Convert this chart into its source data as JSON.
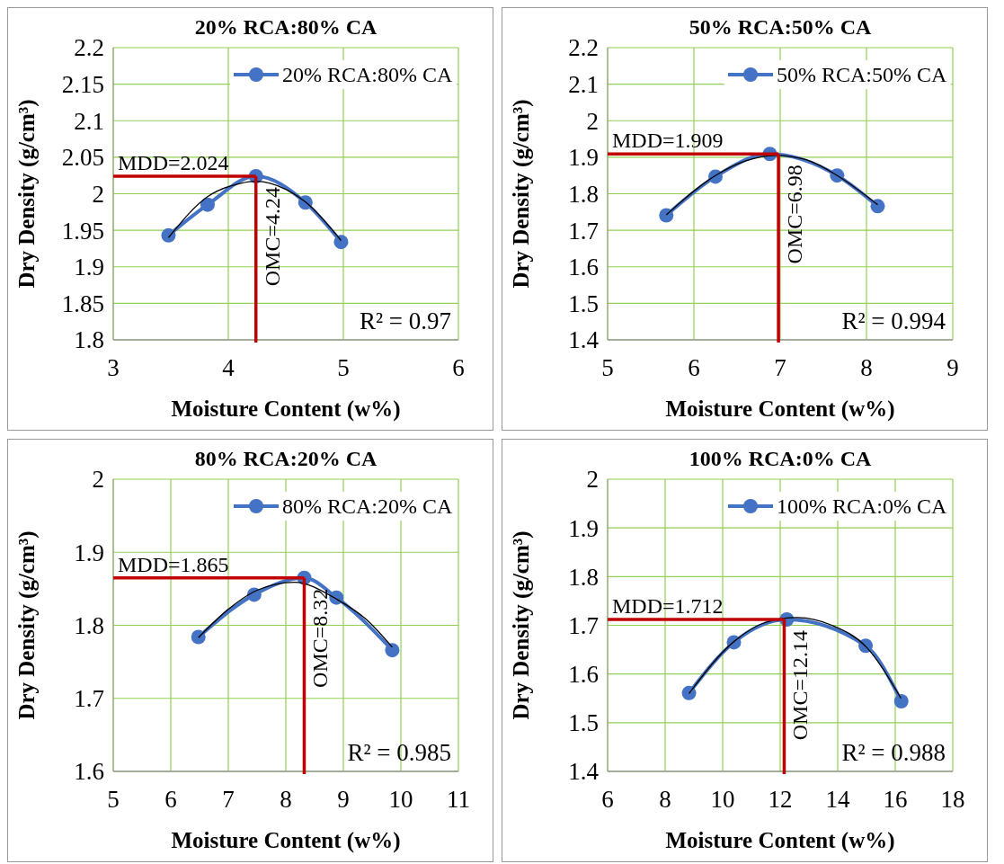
{
  "chart_data": [
    {
      "type": "line",
      "title": "20% RCA:80% CA",
      "xlabel": "Moisture Content (w%)",
      "ylabel": "Dry Density (g/cm³)",
      "xlim": [
        3,
        6
      ],
      "xticks": [
        3,
        4,
        5,
        6
      ],
      "ylim": [
        1.8,
        2.2
      ],
      "yticks": [
        1.8,
        1.85,
        1.9,
        1.95,
        2,
        2.05,
        2.1,
        2.15,
        2.2
      ],
      "grid": true,
      "legend": "top right",
      "series": [
        {
          "name": "20% RCA:80% CA",
          "color": "#4472c4",
          "marker": "circle",
          "x": [
            3.48,
            3.82,
            4.24,
            4.67,
            4.98
          ],
          "values": [
            1.943,
            1.985,
            2.024,
            1.988,
            1.934
          ]
        },
        {
          "type": "line",
          "color": "#000000",
          "marker": "none",
          "x": [
            3.48,
            3.82,
            4.1,
            4.24,
            4.5,
            4.67,
            4.98
          ],
          "values": [
            1.94,
            1.996,
            2.014,
            2.017,
            2.006,
            1.989,
            1.936
          ]
        }
      ],
      "ref_lines": [
        {
          "axis": "y",
          "value": 2.024,
          "label": "MDD=2.024",
          "color": "#c00000"
        },
        {
          "axis": "x",
          "value": 4.24,
          "label": "OMC=4.24",
          "color": "#c00000"
        }
      ],
      "annotations": [
        "R² = 0.97"
      ]
    },
    {
      "type": "line",
      "title": "50% RCA:50% CA",
      "xlabel": "Moisture Content (w%)",
      "ylabel": "Dry Density (g/cm³)",
      "xlim": [
        5,
        9
      ],
      "xticks": [
        5,
        6,
        7,
        8,
        9
      ],
      "ylim": [
        1.4,
        2.2
      ],
      "yticks": [
        1.4,
        1.5,
        1.6,
        1.7,
        1.8,
        1.9,
        2,
        2.1,
        2.2
      ],
      "grid": true,
      "legend": "top right",
      "series": [
        {
          "name": "50% RCA:50% CA",
          "color": "#4472c4",
          "marker": "circle",
          "x": [
            5.68,
            6.25,
            6.88,
            7.66,
            8.13
          ],
          "values": [
            1.741,
            1.847,
            1.909,
            1.85,
            1.766
          ]
        },
        {
          "type": "line",
          "color": "#000000",
          "marker": "none",
          "x": [
            5.68,
            6.25,
            6.6,
            6.95,
            7.3,
            7.66,
            8.13
          ],
          "values": [
            1.742,
            1.85,
            1.89,
            1.905,
            1.893,
            1.85,
            1.77
          ]
        }
      ],
      "ref_lines": [
        {
          "axis": "y",
          "value": 1.909,
          "label": "MDD=1.909",
          "color": "#c00000"
        },
        {
          "axis": "x",
          "value": 6.98,
          "label": "OMC=6.98",
          "color": "#c00000"
        }
      ],
      "annotations": [
        "R² = 0.994"
      ]
    },
    {
      "type": "line",
      "title": "80% RCA:20% CA",
      "xlabel": "Moisture Content (w%)",
      "ylabel": "Dry Density (g/cm³)",
      "xlim": [
        5,
        11
      ],
      "xticks": [
        5,
        6,
        7,
        8,
        9,
        10,
        11
      ],
      "ylim": [
        1.6,
        2
      ],
      "yticks": [
        1.6,
        1.7,
        1.8,
        1.9,
        2
      ],
      "grid": true,
      "legend": "top right",
      "series": [
        {
          "name": "80% RCA:20% CA",
          "color": "#4472c4",
          "marker": "circle",
          "x": [
            6.48,
            7.45,
            8.32,
            8.88,
            9.85
          ],
          "values": [
            1.784,
            1.842,
            1.865,
            1.838,
            1.766
          ]
        },
        {
          "type": "line",
          "color": "#000000",
          "marker": "none",
          "x": [
            6.48,
            7,
            7.5,
            8.15,
            8.9,
            9.4,
            9.85
          ],
          "values": [
            1.783,
            1.822,
            1.848,
            1.859,
            1.835,
            1.808,
            1.77
          ]
        }
      ],
      "ref_lines": [
        {
          "axis": "y",
          "value": 1.865,
          "label": "MDD=1.865",
          "color": "#c00000"
        },
        {
          "axis": "x",
          "value": 8.32,
          "label": "OMC=8.32",
          "color": "#c00000"
        }
      ],
      "annotations": [
        "R² = 0.985"
      ]
    },
    {
      "type": "line",
      "title": "100% RCA:0% CA",
      "xlabel": "Moisture Content (w%)",
      "ylabel": "Dry Density (g/cm³)",
      "xlim": [
        6,
        18
      ],
      "xticks": [
        6,
        8,
        10,
        12,
        14,
        16,
        18
      ],
      "ylim": [
        1.4,
        2
      ],
      "yticks": [
        1.4,
        1.5,
        1.6,
        1.7,
        1.8,
        1.9,
        2
      ],
      "grid": true,
      "legend": "top right",
      "series": [
        {
          "name": "100% RCA:0% CA",
          "color": "#4472c4",
          "marker": "circle",
          "x": [
            8.83,
            10.39,
            12.23,
            14.97,
            16.21
          ],
          "values": [
            1.561,
            1.665,
            1.712,
            1.658,
            1.544
          ]
        },
        {
          "type": "line",
          "color": "#000000",
          "marker": "none",
          "x": [
            8.83,
            10.4,
            11.5,
            12.6,
            13.8,
            15,
            16.2
          ],
          "values": [
            1.56,
            1.667,
            1.706,
            1.716,
            1.7,
            1.655,
            1.55
          ]
        }
      ],
      "ref_lines": [
        {
          "axis": "y",
          "value": 1.712,
          "label": "MDD=1.712",
          "color": "#c00000"
        },
        {
          "axis": "x",
          "value": 12.14,
          "label": "OMC=12.14",
          "color": "#c00000"
        }
      ],
      "annotations": [
        "R² = 0.988"
      ]
    }
  ]
}
